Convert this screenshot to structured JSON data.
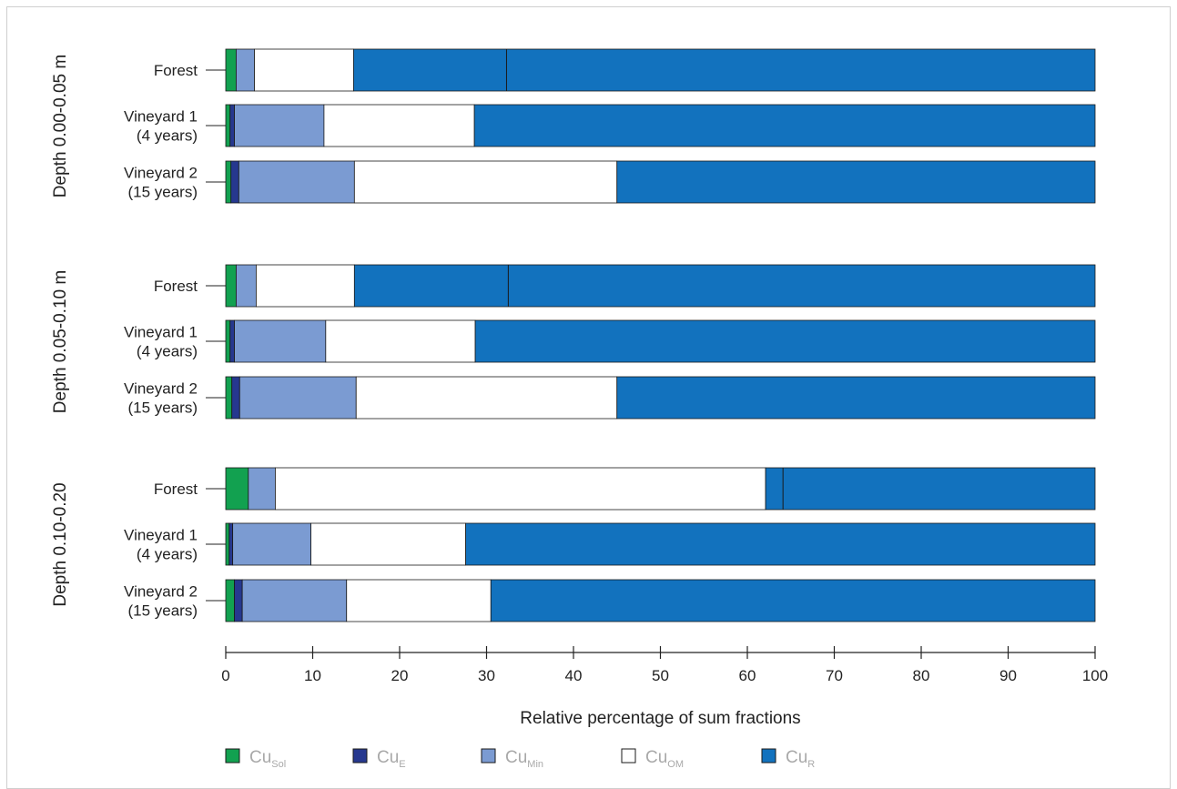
{
  "chart_data": {
    "type": "bar",
    "orientation": "horizontal",
    "stacked": true,
    "xlabel": "Relative percentage of sum fractions",
    "xlim": [
      0,
      100
    ],
    "xticks": [
      0,
      10,
      20,
      30,
      40,
      50,
      60,
      70,
      80,
      90,
      100
    ],
    "legend_position": "bottom",
    "series": [
      {
        "name": "Cu",
        "sub": "Sol",
        "color": "#12a150"
      },
      {
        "name": "Cu",
        "sub": "E",
        "color": "#26388f"
      },
      {
        "name": "Cu",
        "sub": "Min",
        "color": "#7b9bd2"
      },
      {
        "name": "Cu",
        "sub": "OM",
        "color": "#ffffff"
      },
      {
        "name": "Cu",
        "sub": "R",
        "color": "#1272be"
      }
    ],
    "groups": [
      {
        "label": "Depth 0.00-0.05 m",
        "bars": [
          {
            "label": [
              "Forest"
            ],
            "values": [
              1.2,
              0,
              2.1,
              11.4,
              85.3
            ],
            "divider": 32.3
          },
          {
            "label": [
              "Vineyard 1",
              "(4 years)"
            ],
            "values": [
              0.5,
              0.5,
              10.3,
              17.3,
              71.4
            ]
          },
          {
            "label": [
              "Vineyard 2",
              "(15 years)"
            ],
            "values": [
              0.6,
              0.9,
              13.3,
              30.2,
              55.0
            ]
          }
        ]
      },
      {
        "label": "Depth 0.05-0.10 m",
        "bars": [
          {
            "label": [
              "Forest"
            ],
            "values": [
              1.2,
              0,
              2.3,
              11.3,
              85.2
            ],
            "divider": 32.5
          },
          {
            "label": [
              "Vineyard 1",
              "(4 years)"
            ],
            "values": [
              0.5,
              0.5,
              10.5,
              17.2,
              71.3
            ]
          },
          {
            "label": [
              "Vineyard 2",
              "(15 years)"
            ],
            "values": [
              0.7,
              0.9,
              13.4,
              30.0,
              55.0
            ]
          }
        ]
      },
      {
        "label": "Depth 0.10-0.20",
        "bars": [
          {
            "label": [
              "Forest"
            ],
            "values": [
              2.6,
              0,
              3.1,
              56.4,
              37.9
            ],
            "divider": 64.1
          },
          {
            "label": [
              "Vineyard 1",
              "(4 years)"
            ],
            "values": [
              0.4,
              0.4,
              9.0,
              17.8,
              72.4
            ]
          },
          {
            "label": [
              "Vineyard 2",
              "(15 years)"
            ],
            "values": [
              1.0,
              0.9,
              12.0,
              16.6,
              69.5
            ]
          }
        ]
      }
    ]
  }
}
